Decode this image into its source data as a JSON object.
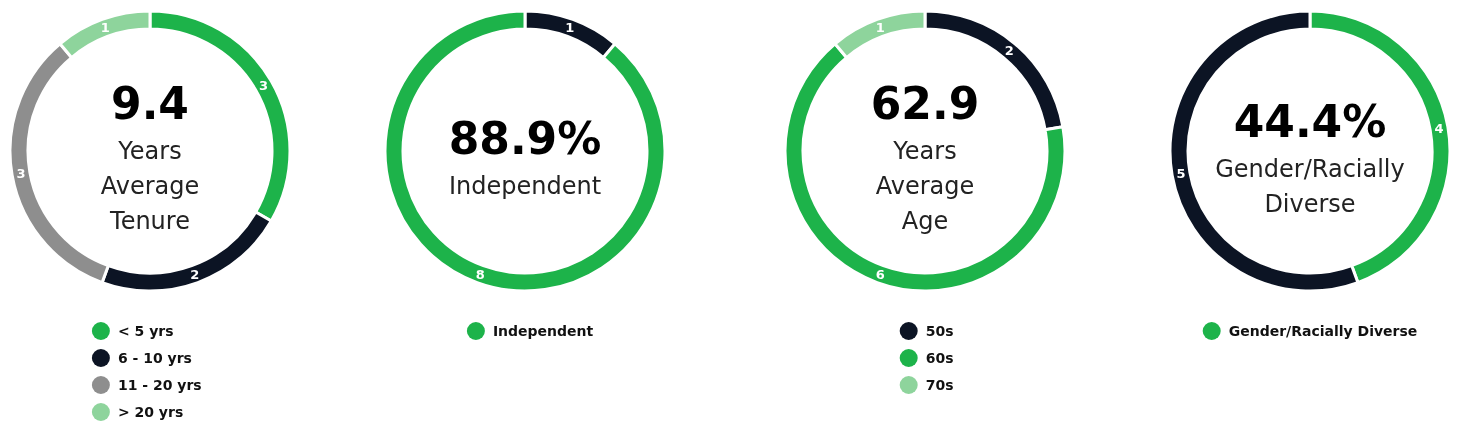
{
  "chart_data": [
    {
      "type": "donut",
      "title": "9.4",
      "subtitle": "Years\nAverage\nTenure",
      "categories": [
        "< 5 yrs",
        "6 - 10 yrs",
        "11 - 20 yrs",
        "> 20 yrs"
      ],
      "values": [
        3,
        2,
        3,
        1
      ],
      "colors": [
        "#1db34a",
        "#0c1424",
        "#8e8e8e",
        "#8ed49c"
      ],
      "data_labels": true,
      "legend": "bottom"
    },
    {
      "type": "donut",
      "title": "88.9%",
      "subtitle": "Independent",
      "categories": [
        null,
        "Independent"
      ],
      "values": [
        1,
        8
      ],
      "colors": [
        "#0c1424",
        "#1db34a"
      ],
      "data_labels": true,
      "legend": "bottom"
    },
    {
      "type": "donut",
      "title": "62.9",
      "subtitle": "Years\nAverage\nAge",
      "categories": [
        "50s",
        "60s",
        "70s"
      ],
      "values": [
        2,
        6,
        1
      ],
      "colors": [
        "#0c1424",
        "#1db34a",
        "#8ed49c"
      ],
      "data_labels": true,
      "legend": "bottom"
    },
    {
      "type": "donut",
      "title": "44.4%",
      "subtitle": "Gender/Racially\nDiverse",
      "categories": [
        "Gender/Racially Diverse",
        null
      ],
      "values": [
        4,
        5
      ],
      "colors": [
        "#1db34a",
        "#0c1424"
      ],
      "data_labels": true,
      "legend": "bottom"
    }
  ]
}
